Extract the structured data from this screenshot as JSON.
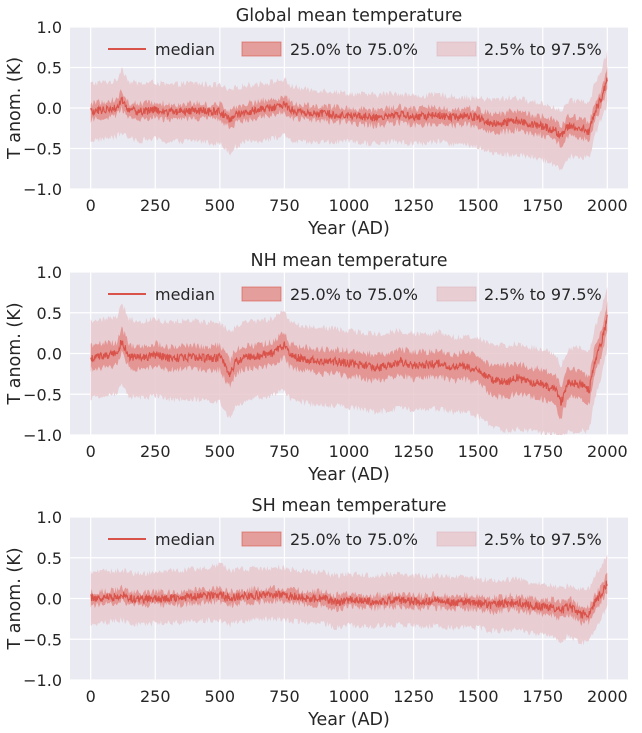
{
  "colors": {
    "median": "#d9534a",
    "iqr": "#e06a61",
    "range95": "#e8c8cd",
    "plot_bg": "#eaeaf2",
    "grid": "#ffffff",
    "text": "#262626"
  },
  "legend": {
    "median": "median",
    "iqr": "25.0% to 75.0%",
    "range95": "2.5% to 97.5%"
  },
  "chart_data": [
    {
      "type": "line",
      "title": "Global mean temperature",
      "xlabel": "Year (AD)",
      "ylabel": "T anom. (K)",
      "xlim": [
        -80,
        2080
      ],
      "ylim": [
        -1.0,
        1.0
      ],
      "xticks": [
        "0",
        "250",
        "500",
        "750",
        "1000",
        "1250",
        "1500",
        "1750",
        "2000"
      ],
      "yticks": [
        "−1.0",
        "−0.5",
        "0.0",
        "0.5",
        "1.0"
      ],
      "grid": true,
      "legend_position": "top",
      "x": [
        0,
        50,
        100,
        120,
        150,
        200,
        250,
        300,
        350,
        400,
        450,
        500,
        540,
        560,
        600,
        650,
        700,
        750,
        770,
        800,
        850,
        900,
        950,
        1000,
        1050,
        1100,
        1150,
        1200,
        1250,
        1300,
        1350,
        1400,
        1450,
        1500,
        1550,
        1600,
        1650,
        1700,
        1750,
        1800,
        1820,
        1850,
        1900,
        1930,
        1950,
        1975,
        2000
      ],
      "series": [
        {
          "name": "median",
          "values": [
            -0.05,
            -0.02,
            0.0,
            0.1,
            -0.03,
            -0.04,
            -0.02,
            -0.05,
            -0.04,
            -0.03,
            -0.05,
            -0.04,
            -0.15,
            -0.08,
            -0.05,
            -0.02,
            0.0,
            0.05,
            -0.02,
            -0.04,
            -0.06,
            -0.07,
            -0.08,
            -0.09,
            -0.1,
            -0.12,
            -0.1,
            -0.08,
            -0.11,
            -0.1,
            -0.09,
            -0.12,
            -0.1,
            -0.12,
            -0.2,
            -0.18,
            -0.15,
            -0.2,
            -0.22,
            -0.28,
            -0.35,
            -0.22,
            -0.25,
            -0.3,
            -0.05,
            0.1,
            0.35
          ]
        },
        {
          "name": "25.0% to 75.0%",
          "lower": [
            -0.15,
            -0.12,
            -0.1,
            0.0,
            -0.12,
            -0.13,
            -0.12,
            -0.14,
            -0.13,
            -0.12,
            -0.14,
            -0.13,
            -0.26,
            -0.18,
            -0.14,
            -0.12,
            -0.1,
            -0.05,
            -0.12,
            -0.13,
            -0.15,
            -0.16,
            -0.17,
            -0.18,
            -0.2,
            -0.22,
            -0.2,
            -0.18,
            -0.21,
            -0.2,
            -0.19,
            -0.22,
            -0.2,
            -0.23,
            -0.32,
            -0.3,
            -0.27,
            -0.32,
            -0.34,
            -0.4,
            -0.47,
            -0.34,
            -0.36,
            -0.42,
            -0.17,
            0.0,
            0.22
          ],
          "upper": [
            0.05,
            0.08,
            0.1,
            0.22,
            0.06,
            0.05,
            0.08,
            0.04,
            0.05,
            0.06,
            0.04,
            0.05,
            -0.04,
            0.02,
            0.05,
            0.08,
            0.1,
            0.15,
            0.08,
            0.05,
            0.03,
            0.02,
            0.01,
            0.0,
            -0.01,
            -0.02,
            0.0,
            0.02,
            -0.01,
            0.0,
            0.01,
            -0.02,
            0.0,
            -0.01,
            -0.08,
            -0.06,
            -0.03,
            -0.08,
            -0.1,
            -0.16,
            -0.23,
            -0.1,
            -0.13,
            -0.18,
            0.07,
            0.2,
            0.5
          ]
        },
        {
          "name": "2.5% to 97.5%",
          "lower": [
            -0.4,
            -0.38,
            -0.36,
            -0.3,
            -0.38,
            -0.4,
            -0.38,
            -0.42,
            -0.41,
            -0.4,
            -0.42,
            -0.44,
            -0.55,
            -0.48,
            -0.42,
            -0.4,
            -0.38,
            -0.34,
            -0.4,
            -0.42,
            -0.43,
            -0.42,
            -0.42,
            -0.42,
            -0.43,
            -0.44,
            -0.42,
            -0.42,
            -0.44,
            -0.43,
            -0.42,
            -0.44,
            -0.46,
            -0.48,
            -0.55,
            -0.58,
            -0.58,
            -0.6,
            -0.65,
            -0.7,
            -0.75,
            -0.6,
            -0.6,
            -0.62,
            -0.35,
            -0.15,
            0.05
          ],
          "upper": [
            0.3,
            0.32,
            0.33,
            0.5,
            0.32,
            0.3,
            0.32,
            0.28,
            0.3,
            0.31,
            0.29,
            0.28,
            0.2,
            0.25,
            0.28,
            0.3,
            0.32,
            0.35,
            0.28,
            0.25,
            0.22,
            0.22,
            0.2,
            0.18,
            0.17,
            0.16,
            0.18,
            0.18,
            0.15,
            0.15,
            0.17,
            0.14,
            0.13,
            0.12,
            0.1,
            0.12,
            0.13,
            0.08,
            0.06,
            0.0,
            -0.05,
            0.08,
            0.1,
            0.05,
            0.3,
            0.45,
            0.7
          ]
        }
      ]
    },
    {
      "type": "line",
      "title": "NH mean temperature",
      "xlabel": "Year (AD)",
      "ylabel": "T anom. (K)",
      "xlim": [
        -80,
        2080
      ],
      "ylim": [
        -1.0,
        1.0
      ],
      "xticks": [
        "0",
        "250",
        "500",
        "750",
        "1000",
        "1250",
        "1500",
        "1750",
        "2000"
      ],
      "yticks": [
        "−1.0",
        "−0.5",
        "0.0",
        "0.5",
        "1.0"
      ],
      "grid": true,
      "legend_position": "top",
      "x": [
        0,
        50,
        100,
        120,
        150,
        200,
        250,
        300,
        350,
        400,
        450,
        500,
        540,
        560,
        600,
        650,
        700,
        750,
        770,
        800,
        850,
        900,
        950,
        1000,
        1050,
        1100,
        1150,
        1200,
        1250,
        1300,
        1350,
        1400,
        1450,
        1500,
        1550,
        1600,
        1650,
        1700,
        1750,
        1800,
        1820,
        1850,
        1900,
        1930,
        1950,
        1975,
        2000
      ],
      "series": [
        {
          "name": "median",
          "values": [
            -0.05,
            -0.03,
            0.0,
            0.15,
            -0.04,
            -0.05,
            -0.02,
            -0.06,
            -0.05,
            -0.04,
            -0.06,
            -0.05,
            -0.25,
            -0.1,
            -0.05,
            -0.03,
            0.0,
            0.1,
            -0.02,
            -0.05,
            -0.08,
            -0.1,
            -0.1,
            -0.12,
            -0.14,
            -0.18,
            -0.15,
            -0.1,
            -0.15,
            -0.14,
            -0.12,
            -0.18,
            -0.15,
            -0.2,
            -0.32,
            -0.35,
            -0.3,
            -0.35,
            -0.38,
            -0.45,
            -0.6,
            -0.35,
            -0.38,
            -0.45,
            -0.1,
            0.1,
            0.45
          ]
        },
        {
          "name": "25.0% to 75.0%",
          "lower": [
            -0.2,
            -0.17,
            -0.14,
            0.0,
            -0.18,
            -0.19,
            -0.16,
            -0.2,
            -0.19,
            -0.18,
            -0.2,
            -0.2,
            -0.42,
            -0.25,
            -0.19,
            -0.17,
            -0.14,
            -0.05,
            -0.16,
            -0.19,
            -0.23,
            -0.25,
            -0.25,
            -0.28,
            -0.3,
            -0.34,
            -0.31,
            -0.26,
            -0.31,
            -0.3,
            -0.28,
            -0.34,
            -0.32,
            -0.37,
            -0.5,
            -0.55,
            -0.48,
            -0.53,
            -0.56,
            -0.64,
            -0.8,
            -0.53,
            -0.55,
            -0.62,
            -0.25,
            -0.05,
            0.28
          ],
          "upper": [
            0.1,
            0.12,
            0.14,
            0.32,
            0.1,
            0.09,
            0.12,
            0.08,
            0.09,
            0.1,
            0.08,
            0.1,
            -0.08,
            0.05,
            0.09,
            0.11,
            0.14,
            0.25,
            0.12,
            0.09,
            0.07,
            0.05,
            0.05,
            0.04,
            0.02,
            -0.02,
            0.01,
            0.06,
            0.01,
            0.02,
            0.04,
            -0.02,
            0.02,
            -0.03,
            -0.14,
            -0.15,
            -0.12,
            -0.17,
            -0.2,
            -0.26,
            -0.4,
            -0.17,
            -0.21,
            -0.28,
            0.05,
            0.25,
            0.65
          ]
        },
        {
          "name": "2.5% to 97.5%",
          "lower": [
            -0.55,
            -0.52,
            -0.5,
            -0.35,
            -0.53,
            -0.55,
            -0.52,
            -0.56,
            -0.56,
            -0.55,
            -0.58,
            -0.6,
            -0.8,
            -0.65,
            -0.58,
            -0.55,
            -0.52,
            -0.45,
            -0.55,
            -0.58,
            -0.62,
            -0.63,
            -0.64,
            -0.66,
            -0.68,
            -0.72,
            -0.7,
            -0.66,
            -0.7,
            -0.69,
            -0.68,
            -0.72,
            -0.72,
            -0.78,
            -0.88,
            -0.95,
            -0.92,
            -0.95,
            -0.98,
            -1.0,
            -1.0,
            -0.95,
            -0.95,
            -0.95,
            -0.55,
            -0.3,
            0.05
          ],
          "upper": [
            0.4,
            0.42,
            0.44,
            0.62,
            0.42,
            0.4,
            0.42,
            0.38,
            0.4,
            0.4,
            0.38,
            0.38,
            0.25,
            0.32,
            0.38,
            0.4,
            0.42,
            0.52,
            0.4,
            0.36,
            0.33,
            0.32,
            0.3,
            0.28,
            0.26,
            0.24,
            0.26,
            0.28,
            0.24,
            0.24,
            0.26,
            0.2,
            0.2,
            0.18,
            0.12,
            0.1,
            0.12,
            0.08,
            0.05,
            -0.02,
            -0.15,
            0.05,
            0.08,
            0.02,
            0.3,
            0.5,
            0.85
          ]
        }
      ]
    },
    {
      "type": "line",
      "title": "SH mean temperature",
      "xlabel": "Year (AD)",
      "ylabel": "T anom. (K)",
      "xlim": [
        -80,
        2080
      ],
      "ylim": [
        -1.0,
        1.0
      ],
      "xticks": [
        "0",
        "250",
        "500",
        "750",
        "1000",
        "1250",
        "1500",
        "1750",
        "2000"
      ],
      "yticks": [
        "−1.0",
        "−0.5",
        "0.0",
        "0.5",
        "1.0"
      ],
      "grid": true,
      "legend_position": "top",
      "x": [
        0,
        50,
        100,
        120,
        150,
        200,
        250,
        300,
        350,
        400,
        450,
        500,
        540,
        560,
        600,
        650,
        700,
        750,
        770,
        800,
        850,
        900,
        950,
        1000,
        1050,
        1100,
        1150,
        1200,
        1250,
        1300,
        1350,
        1400,
        1450,
        1500,
        1550,
        1600,
        1650,
        1700,
        1750,
        1800,
        1820,
        1850,
        1900,
        1930,
        1950,
        1975,
        2000
      ],
      "series": [
        {
          "name": "median",
          "values": [
            0.0,
            0.01,
            0.02,
            0.05,
            0.0,
            -0.01,
            0.0,
            0.0,
            0.01,
            0.02,
            0.03,
            0.05,
            0.0,
            0.02,
            0.03,
            0.04,
            0.05,
            0.05,
            0.03,
            0.02,
            0.0,
            0.0,
            -0.05,
            -0.02,
            -0.03,
            -0.04,
            -0.03,
            -0.02,
            -0.04,
            -0.04,
            -0.03,
            -0.05,
            -0.04,
            -0.05,
            -0.08,
            -0.06,
            -0.05,
            -0.08,
            -0.1,
            -0.12,
            -0.15,
            -0.1,
            -0.2,
            -0.18,
            -0.05,
            0.05,
            0.2
          ]
        },
        {
          "name": "25.0% to 75.0%",
          "lower": [
            -0.08,
            -0.07,
            -0.06,
            -0.03,
            -0.08,
            -0.09,
            -0.08,
            -0.08,
            -0.07,
            -0.06,
            -0.05,
            -0.03,
            -0.09,
            -0.06,
            -0.05,
            -0.04,
            -0.03,
            -0.03,
            -0.05,
            -0.06,
            -0.08,
            -0.08,
            -0.14,
            -0.1,
            -0.11,
            -0.12,
            -0.11,
            -0.1,
            -0.12,
            -0.12,
            -0.11,
            -0.13,
            -0.12,
            -0.13,
            -0.17,
            -0.15,
            -0.14,
            -0.17,
            -0.19,
            -0.22,
            -0.26,
            -0.2,
            -0.3,
            -0.28,
            -0.14,
            -0.04,
            0.08
          ],
          "upper": [
            0.08,
            0.09,
            0.1,
            0.13,
            0.08,
            0.07,
            0.08,
            0.08,
            0.09,
            0.1,
            0.11,
            0.13,
            0.08,
            0.1,
            0.11,
            0.12,
            0.13,
            0.13,
            0.11,
            0.1,
            0.08,
            0.08,
            0.04,
            0.06,
            0.05,
            0.04,
            0.05,
            0.06,
            0.04,
            0.04,
            0.05,
            0.03,
            0.04,
            0.03,
            0.01,
            0.03,
            0.04,
            0.01,
            -0.01,
            -0.02,
            -0.05,
            0.0,
            -0.1,
            -0.08,
            0.04,
            0.14,
            0.32
          ]
        },
        {
          "name": "2.5% to 97.5%",
          "lower": [
            -0.3,
            -0.3,
            -0.28,
            -0.26,
            -0.3,
            -0.32,
            -0.3,
            -0.3,
            -0.29,
            -0.28,
            -0.27,
            -0.26,
            -0.32,
            -0.28,
            -0.27,
            -0.26,
            -0.25,
            -0.25,
            -0.27,
            -0.28,
            -0.3,
            -0.3,
            -0.36,
            -0.32,
            -0.33,
            -0.34,
            -0.33,
            -0.32,
            -0.34,
            -0.34,
            -0.33,
            -0.36,
            -0.35,
            -0.36,
            -0.4,
            -0.39,
            -0.38,
            -0.42,
            -0.45,
            -0.48,
            -0.52,
            -0.45,
            -0.55,
            -0.52,
            -0.38,
            -0.25,
            -0.1
          ],
          "upper": [
            0.32,
            0.33,
            0.34,
            0.36,
            0.32,
            0.31,
            0.32,
            0.33,
            0.34,
            0.36,
            0.38,
            0.42,
            0.33,
            0.35,
            0.36,
            0.37,
            0.38,
            0.38,
            0.36,
            0.35,
            0.33,
            0.32,
            0.28,
            0.3,
            0.29,
            0.28,
            0.29,
            0.3,
            0.28,
            0.27,
            0.28,
            0.26,
            0.26,
            0.25,
            0.22,
            0.23,
            0.24,
            0.2,
            0.18,
            0.15,
            0.12,
            0.16,
            0.1,
            0.12,
            0.28,
            0.4,
            0.55
          ]
        }
      ]
    }
  ]
}
